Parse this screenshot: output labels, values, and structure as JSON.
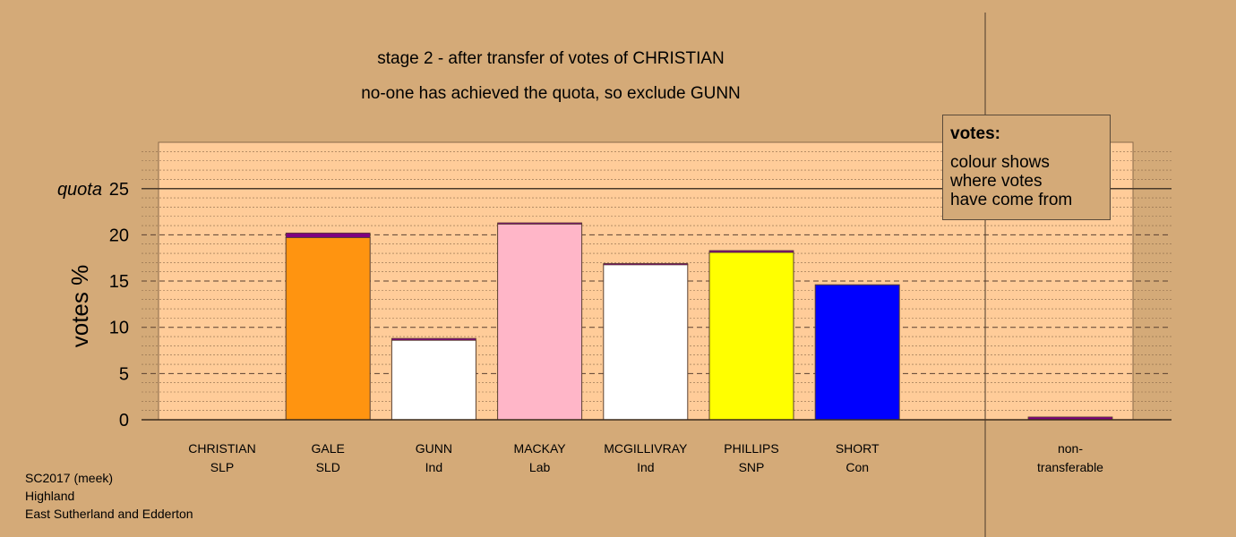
{
  "title_line1": "stage 2 - after transfer of votes of CHRISTIAN",
  "title_line2": "no-one has achieved the quota, so exclude GUNN",
  "legend": {
    "heading": "votes:",
    "lines": [
      "colour shows",
      "where votes",
      "have come from"
    ]
  },
  "footer": [
    "SC2017 (meek)",
    "Highland",
    "East Sutherland and Edderton"
  ],
  "chart_data": {
    "type": "bar",
    "ylabel": "votes %",
    "ylim": [
      0,
      30
    ],
    "yticks": [
      0,
      5,
      10,
      15,
      20,
      25
    ],
    "quota": 25,
    "quota_label": "quota",
    "categories": [
      {
        "name": "CHRISTIAN",
        "party": "SLP",
        "color": "#800080",
        "base": 0.0,
        "transfer": 0.0
      },
      {
        "name": "GALE",
        "party": "SLD",
        "color": "#ff9410",
        "base": 19.7,
        "transfer": 0.5
      },
      {
        "name": "GUNN",
        "party": "Ind",
        "color": "#ffffff",
        "base": 8.6,
        "transfer": 0.2
      },
      {
        "name": "MACKAY",
        "party": "Lab",
        "color": "#ffb6c8",
        "base": 21.2,
        "transfer": 0.1
      },
      {
        "name": "MCGILLIVRAY",
        "party": "Ind",
        "color": "#ffffff",
        "base": 16.8,
        "transfer": 0.1
      },
      {
        "name": "PHILLIPS",
        "party": "SNP",
        "color": "#ffff00",
        "base": 18.1,
        "transfer": 0.2
      },
      {
        "name": "SHORT",
        "party": "Con",
        "color": "#0000ff",
        "base": 14.6,
        "transfer": 0.0
      }
    ],
    "nontransferable": {
      "label_line1": "non-",
      "label_line2": "transferable",
      "value": 0.3,
      "color": "#800080"
    },
    "transfer_color": "#800080",
    "plot_background": "#ffcc99",
    "grid": true
  }
}
